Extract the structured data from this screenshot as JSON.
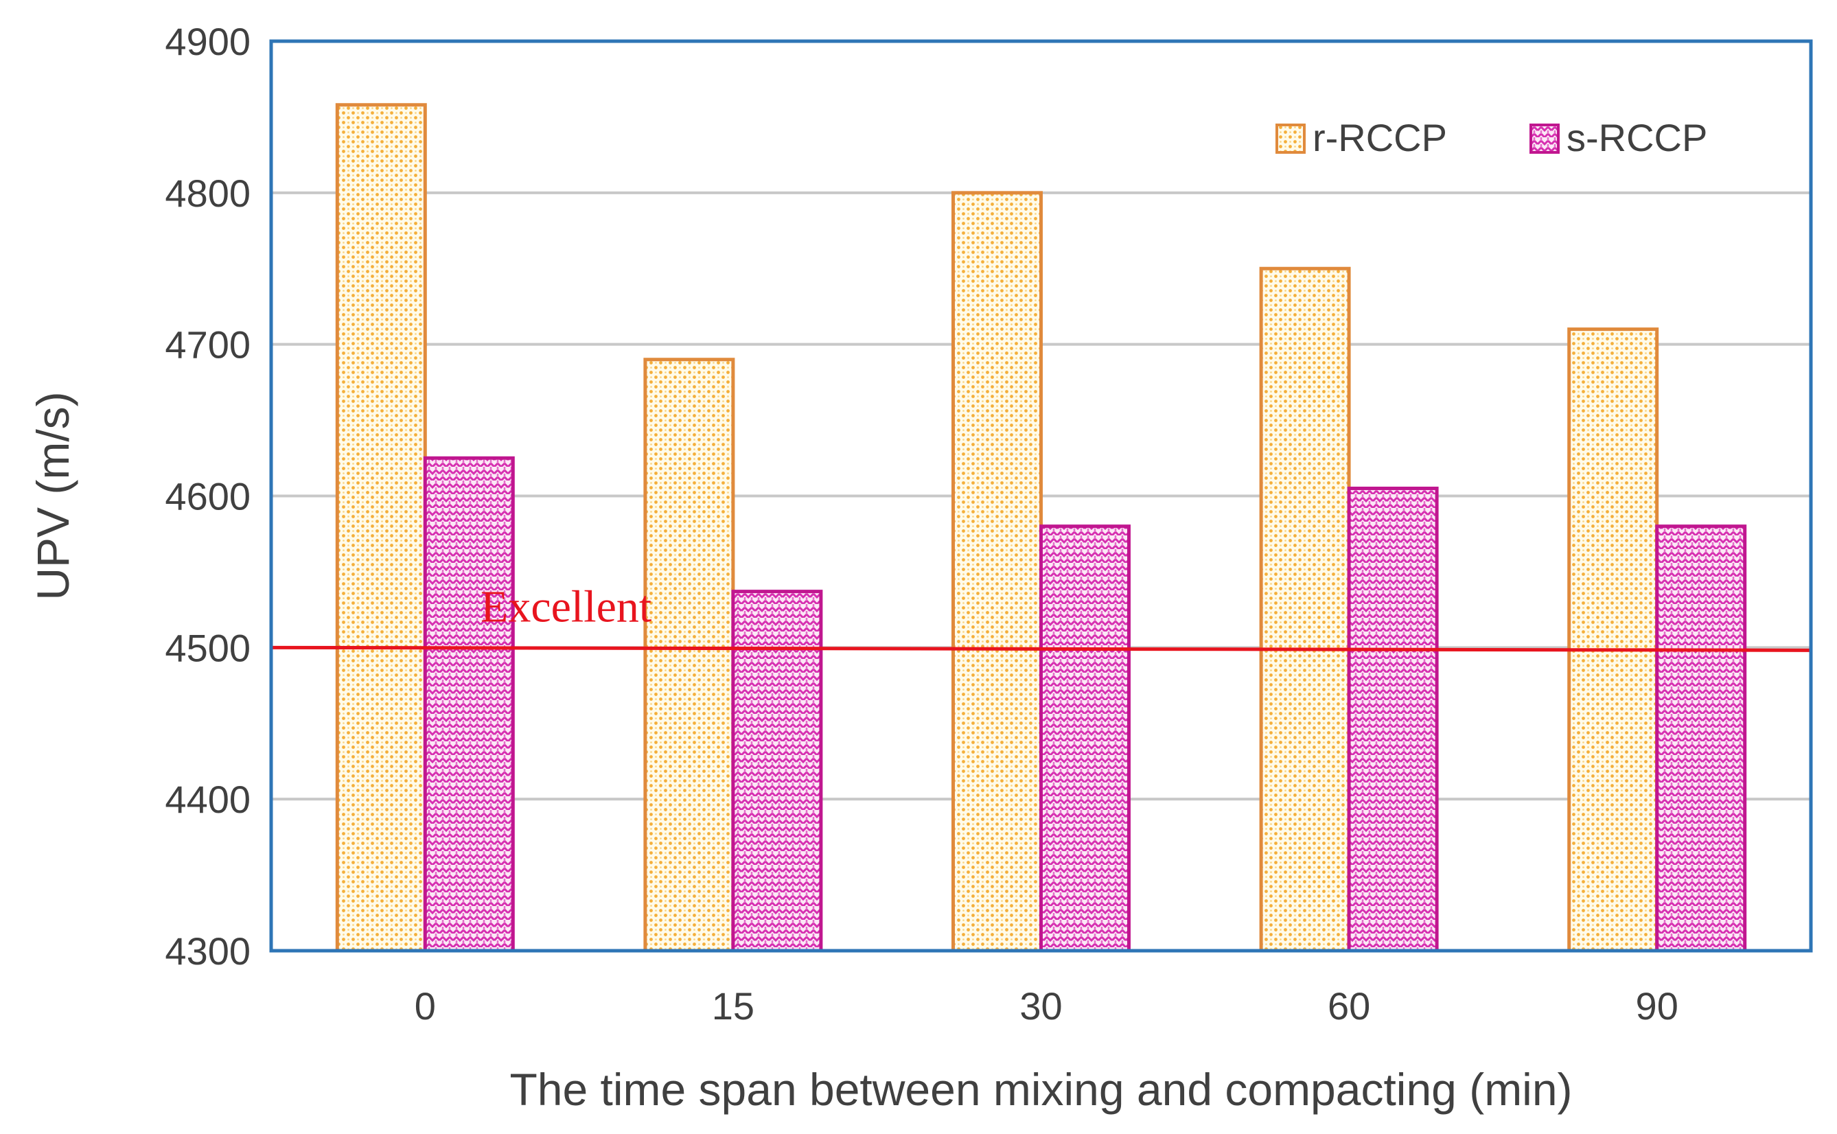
{
  "chart_data": {
    "type": "bar",
    "title": "",
    "xlabel": "The time span between mixing and compacting (min)",
    "ylabel": "UPV (m/s)",
    "categories": [
      "0",
      "15",
      "30",
      "60",
      "90"
    ],
    "ylim": [
      4300,
      4900
    ],
    "yticks": [
      4300,
      4400,
      4500,
      4600,
      4700,
      4800,
      4900
    ],
    "ytick_labels": [
      "4300",
      "4400",
      "4500",
      "4600",
      "4700",
      "4800",
      "4900"
    ],
    "grid": true,
    "legend_position": "top-right",
    "series": [
      {
        "name": "r-RCCP",
        "values": [
          4858,
          4690,
          4800,
          4750,
          4710
        ],
        "color": "#F0A030",
        "edge": "#E08A3C"
      },
      {
        "name": "s-RCCP",
        "values": [
          4625,
          4537,
          4580,
          4605,
          4580
        ],
        "color": "#E040C0",
        "edge": "#C0168F"
      }
    ],
    "reference_line": {
      "value": 4500,
      "label": "Excellent",
      "color": "#E8141E"
    }
  },
  "colors": {
    "frame": "#2E75B6",
    "grid": "#C8C8C8",
    "text": "#404040"
  }
}
